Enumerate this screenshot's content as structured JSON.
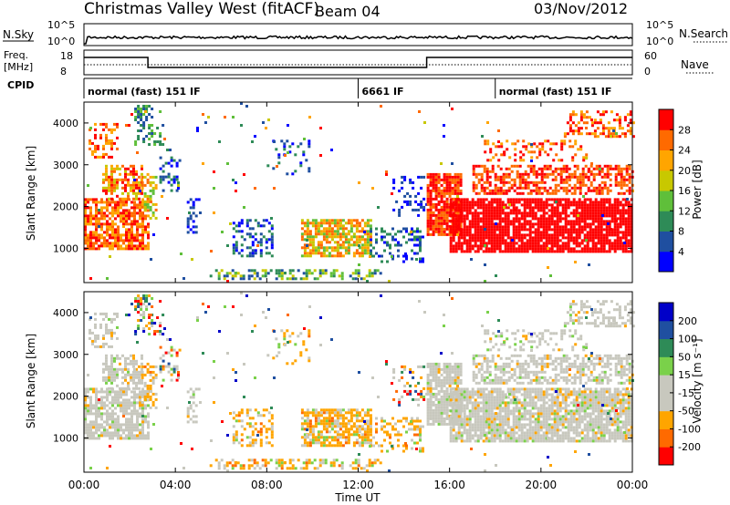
{
  "header": {
    "title": "Christmas Valley West (fitACF)",
    "beam": "Beam 04",
    "date": "03/Nov/2012"
  },
  "top_panels": {
    "nsky": {
      "label": "N.Sky",
      "ticks": [
        "10^5",
        "10^0"
      ]
    },
    "nsearch": {
      "label": "N.Search",
      "ticks": [
        "10^5",
        "10^0"
      ]
    },
    "freq": {
      "label_line1": "Freq.",
      "label_line2": "[MHz]",
      "ticks": [
        "18",
        "8"
      ]
    },
    "nave": {
      "label": "Nave",
      "ticks": [
        "60",
        "0"
      ]
    },
    "cpid": {
      "label": "CPID",
      "segments": [
        {
          "text": "normal (fast) 151 IF",
          "start_h": 0
        },
        {
          "text": "6661 IF",
          "start_h": 12
        },
        {
          "text": "normal (fast) 151 IF",
          "start_h": 18
        }
      ]
    }
  },
  "colors": {
    "power": [
      "#0000ff",
      "#1f4fa0",
      "#2e8b57",
      "#5fbf3a",
      "#c8c800",
      "#ffa500",
      "#ff6a00",
      "#ff0000"
    ],
    "velocity": [
      "#ff0000",
      "#ff6a00",
      "#ffa500",
      "#c8c8be",
      "#c8c8be",
      "#7ad14a",
      "#2e8b57",
      "#1f4fa0",
      "#0000c8"
    ]
  },
  "chart_data": [
    {
      "type": "heatmap",
      "name": "power",
      "ylabel": "Slant Range [km]",
      "ylim": [
        180,
        4500
      ],
      "yticks": [
        "1000",
        "2000",
        "3000",
        "4000"
      ],
      "xlim": [
        0,
        24
      ],
      "colorbar": {
        "label": "Power [dB]",
        "ticks": [
          "28",
          "24",
          "20",
          "16",
          "12",
          "8",
          "4"
        ],
        "range": [
          0,
          32
        ]
      }
    },
    {
      "type": "heatmap",
      "name": "velocity",
      "ylabel": "Slant Range [km]",
      "ylim": [
        180,
        4500
      ],
      "yticks": [
        "1000",
        "2000",
        "3000",
        "4000"
      ],
      "xlabel": "Time UT",
      "xticks": [
        "00:00",
        "04:00",
        "08:00",
        "12:00",
        "16:00",
        "20:00",
        "00:00"
      ],
      "xlim": [
        0,
        24
      ],
      "colorbar": {
        "label": "Velocity [m s⁻¹]",
        "ticks": [
          "200",
          "100",
          "50",
          "15",
          "-15",
          "-50",
          "-100",
          "-200"
        ]
      }
    }
  ]
}
